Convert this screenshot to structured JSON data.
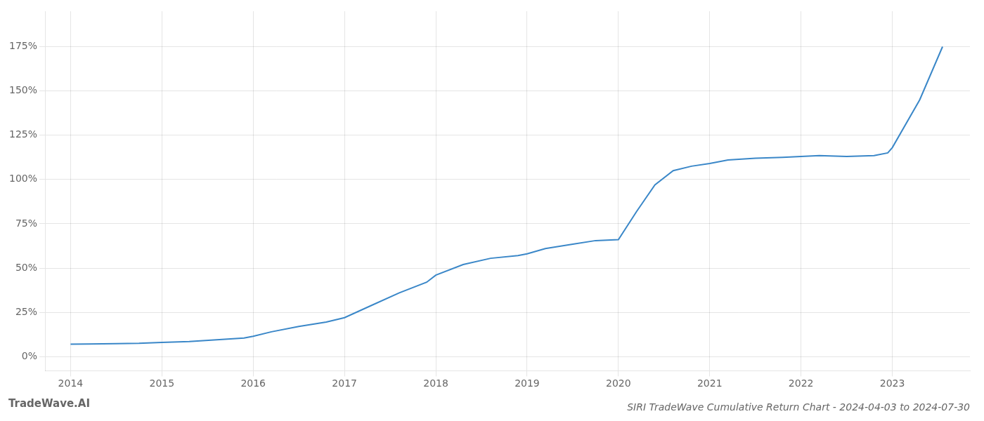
{
  "chart_data": {
    "type": "line",
    "title": "SIRI TradeWave Cumulative Return Chart - 2024-04-03 to 2024-07-30",
    "annotations": [
      "TradeWave.AI"
    ],
    "x": [
      2014.0,
      2014.2,
      2014.5,
      2014.75,
      2015.0,
      2015.3,
      2015.6,
      2015.9,
      2016.0,
      2016.2,
      2016.5,
      2016.8,
      2017.0,
      2017.3,
      2017.6,
      2017.9,
      2018.0,
      2018.3,
      2018.6,
      2018.9,
      2019.0,
      2019.2,
      2019.5,
      2019.75,
      2020.0,
      2020.2,
      2020.4,
      2020.6,
      2020.8,
      2021.0,
      2021.2,
      2021.5,
      2021.8,
      2022.0,
      2022.2,
      2022.5,
      2022.8,
      2022.95,
      2023.0,
      2023.3,
      2023.55
    ],
    "values": [
      7.0,
      7.1,
      7.3,
      7.5,
      8.0,
      8.5,
      9.5,
      10.5,
      11.5,
      14.0,
      17.0,
      19.5,
      22.0,
      29.0,
      36.0,
      42.0,
      46.0,
      52.0,
      55.5,
      57.0,
      58.0,
      61.0,
      63.5,
      65.5,
      66.0,
      82.0,
      97.0,
      105.0,
      107.5,
      109.0,
      111.0,
      112.0,
      112.5,
      113.0,
      113.5,
      113.0,
      113.5,
      115.0,
      118.0,
      145.0,
      175.0
    ],
    "color": "#3a87c8",
    "xlim": [
      2013.72,
      2023.85
    ],
    "xticks": [
      2014,
      2015,
      2016,
      2017,
      2018,
      2019,
      2020,
      2021,
      2022,
      2023
    ],
    "ylim": [
      -8,
      195
    ],
    "yticks": [
      {
        "value": 0,
        "label": "0%"
      },
      {
        "value": 25,
        "label": "25%"
      },
      {
        "value": 50,
        "label": "50%"
      },
      {
        "value": 75,
        "label": "75%"
      },
      {
        "value": 100,
        "label": "100%"
      },
      {
        "value": 125,
        "label": "125%"
      },
      {
        "value": 150,
        "label": "150%"
      },
      {
        "value": 175,
        "label": "175%"
      }
    ],
    "grid": true
  }
}
